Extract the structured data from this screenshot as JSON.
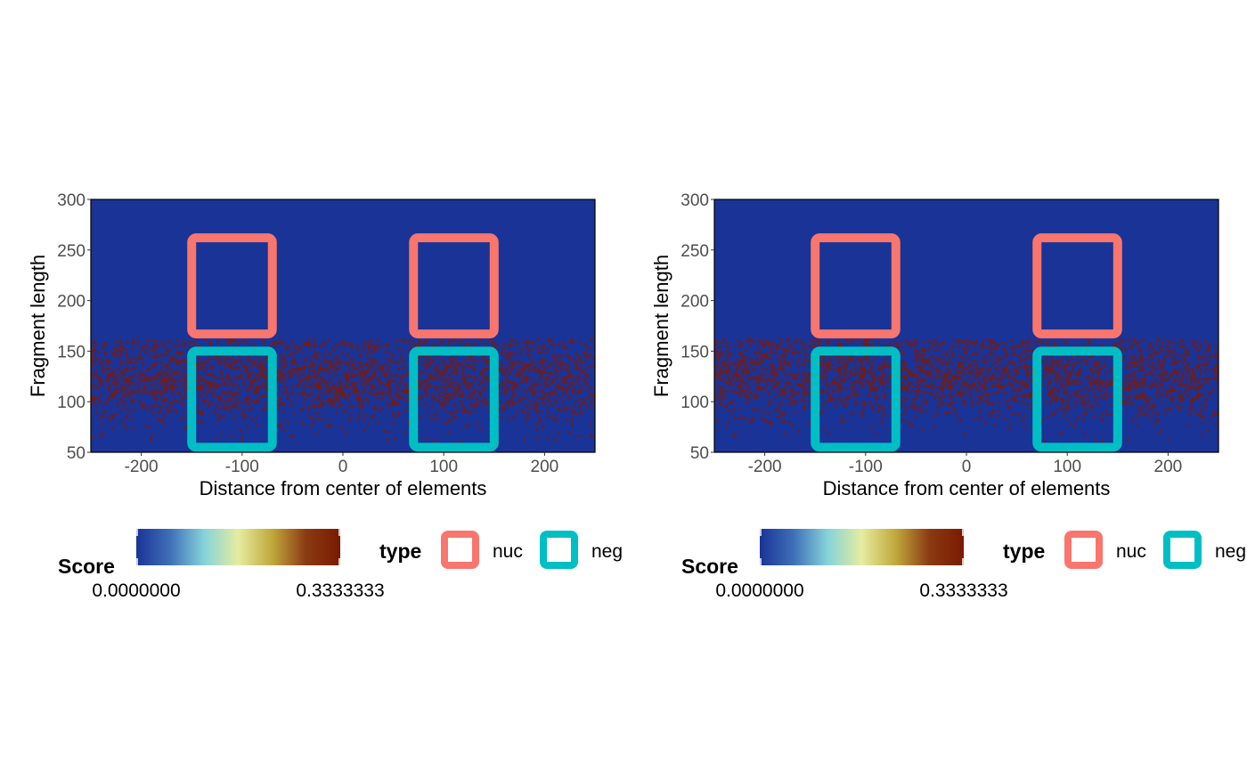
{
  "chart_data": [
    {
      "type": "heatmap",
      "xlabel": "Distance from center of elements",
      "ylabel": "Fragment length",
      "xlim": [
        -250,
        250
      ],
      "ylim": [
        50,
        300
      ],
      "x_ticks": [
        -200,
        -100,
        0,
        100,
        200
      ],
      "y_ticks": [
        50,
        100,
        150,
        200,
        250,
        300
      ],
      "background_color": "#1a3396",
      "point_color": "#7a1a0a",
      "dense_band": {
        "y_range": [
          60,
          162
        ],
        "core_y_range": [
          95,
          150
        ]
      },
      "boxes": [
        {
          "type": "nuc",
          "x": [
            -150,
            -70
          ],
          "y": [
            167,
            262
          ]
        },
        {
          "type": "nuc",
          "x": [
            70,
            150
          ],
          "y": [
            167,
            262
          ]
        },
        {
          "type": "neg",
          "x": [
            -150,
            -70
          ],
          "y": [
            55,
            150
          ]
        },
        {
          "type": "neg",
          "x": [
            70,
            150
          ],
          "y": [
            55,
            150
          ]
        }
      ],
      "legend": {
        "score_title": "Score",
        "score_min_label": "0.0000000",
        "score_max_label": "0.3333333",
        "score_colors": [
          "#1a3396",
          "#3f70b8",
          "#86d3da",
          "#e6eca0",
          "#c0a83a",
          "#8a3a12",
          "#7a1a00"
        ],
        "type_title": "type",
        "type_entries": [
          {
            "label": "nuc",
            "color": "#f8766d"
          },
          {
            "label": "neg",
            "color": "#00bfc4"
          }
        ],
        "placement": "bottom"
      }
    },
    {
      "type": "heatmap",
      "xlabel": "Distance from center of elements",
      "ylabel": "Fragment length",
      "xlim": [
        -250,
        250
      ],
      "ylim": [
        50,
        300
      ],
      "x_ticks": [
        -200,
        -100,
        0,
        100,
        200
      ],
      "y_ticks": [
        50,
        100,
        150,
        200,
        250,
        300
      ],
      "background_color": "#1a3396",
      "point_color": "#7a1a0a",
      "dense_band": {
        "y_range": [
          60,
          162
        ],
        "core_y_range": [
          98,
          152
        ]
      },
      "boxes": [
        {
          "type": "nuc",
          "x": [
            -150,
            -70
          ],
          "y": [
            167,
            262
          ]
        },
        {
          "type": "nuc",
          "x": [
            70,
            150
          ],
          "y": [
            167,
            262
          ]
        },
        {
          "type": "neg",
          "x": [
            -150,
            -70
          ],
          "y": [
            55,
            150
          ]
        },
        {
          "type": "neg",
          "x": [
            70,
            150
          ],
          "y": [
            55,
            150
          ]
        }
      ],
      "legend": {
        "score_title": "Score",
        "score_min_label": "0.0000000",
        "score_max_label": "0.3333333",
        "score_colors": [
          "#1a3396",
          "#3f70b8",
          "#86d3da",
          "#e6eca0",
          "#c0a83a",
          "#8a3a12",
          "#7a1a00"
        ],
        "type_title": "type",
        "type_entries": [
          {
            "label": "nuc",
            "color": "#f8766d"
          },
          {
            "label": "neg",
            "color": "#00bfc4"
          }
        ],
        "placement": "bottom"
      }
    }
  ]
}
